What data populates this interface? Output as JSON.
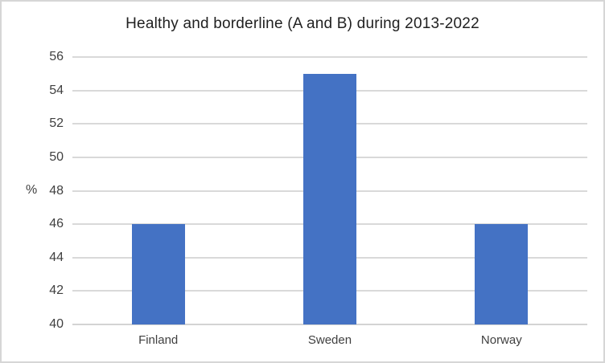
{
  "chart_data": {
    "type": "bar",
    "title": "Healthy and borderline (A and B) during 2013-2022",
    "categories": [
      "Finland",
      "Sweden",
      "Norway"
    ],
    "values": [
      46,
      55,
      46
    ],
    "xlabel": "",
    "ylabel": "%",
    "ylim": [
      40,
      56
    ],
    "ytick_step": 2,
    "yticks": [
      40,
      42,
      44,
      46,
      48,
      50,
      52,
      54,
      56
    ],
    "grid": true,
    "legend": "none",
    "bar_color": "#4472C4",
    "gridline_color": "#d9d9d9",
    "axis_text_color": "#404040",
    "title_color": "#212121",
    "frame_border_color": "#d6d6d6"
  }
}
